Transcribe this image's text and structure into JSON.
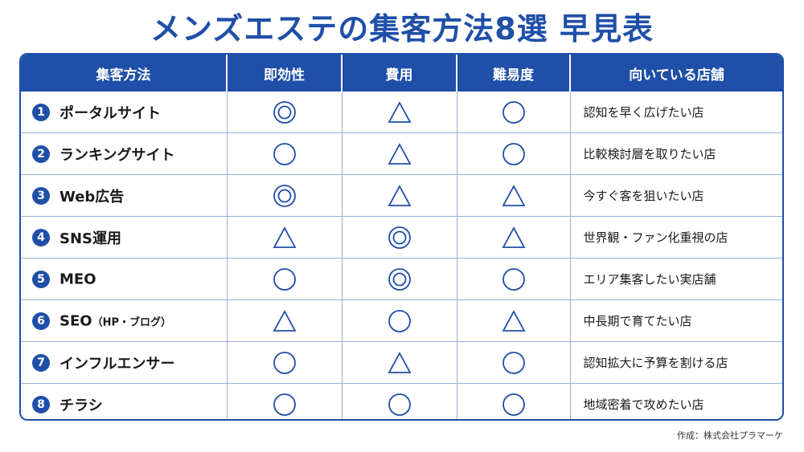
{
  "title": "メンズエステの集客方法8選 早見表",
  "headers": [
    "集客方法",
    "即効性",
    "費用",
    "難易度",
    "向いている店舗"
  ],
  "rows": [
    {
      "num": "1",
      "method": "ポータルサイト",
      "suffix": "",
      "ratings": [
        "double-circle",
        "triangle",
        "circle"
      ],
      "store": "認知を早く広げたい店"
    },
    {
      "num": "2",
      "method": "ランキングサイト",
      "suffix": "",
      "ratings": [
        "circle",
        "triangle",
        "circle"
      ],
      "store": "比較検討層を取りたい店"
    },
    {
      "num": "3",
      "method": "Web広告",
      "suffix": "",
      "ratings": [
        "double-circle",
        "triangle",
        "triangle"
      ],
      "store": "今すぐ客を狙いたい店"
    },
    {
      "num": "4",
      "method": "SNS運用",
      "suffix": "",
      "ratings": [
        "triangle",
        "double-circle",
        "triangle"
      ],
      "store": "世界観・ファン化重視の店"
    },
    {
      "num": "5",
      "method": "MEO",
      "suffix": "",
      "ratings": [
        "circle",
        "double-circle",
        "circle"
      ],
      "store": "エリア集客したい実店舗"
    },
    {
      "num": "6",
      "method": "SEO",
      "suffix": "（HP・ブログ）",
      "ratings": [
        "triangle",
        "circle",
        "triangle"
      ],
      "store": "中長期で育てたい店"
    },
    {
      "num": "7",
      "method": "インフルエンサー",
      "suffix": "",
      "ratings": [
        "circle",
        "triangle",
        "circle"
      ],
      "store": "認知拡大に予算を割ける店"
    },
    {
      "num": "8",
      "method": "チラシ",
      "suffix": "",
      "ratings": [
        "circle",
        "circle",
        "circle"
      ],
      "store": "地域密着で攻めたい店"
    }
  ],
  "credit": "作成：株式会社プラマーケ",
  "colors": {
    "accent": "#1f4fa8",
    "grid": "#9aaed6"
  }
}
